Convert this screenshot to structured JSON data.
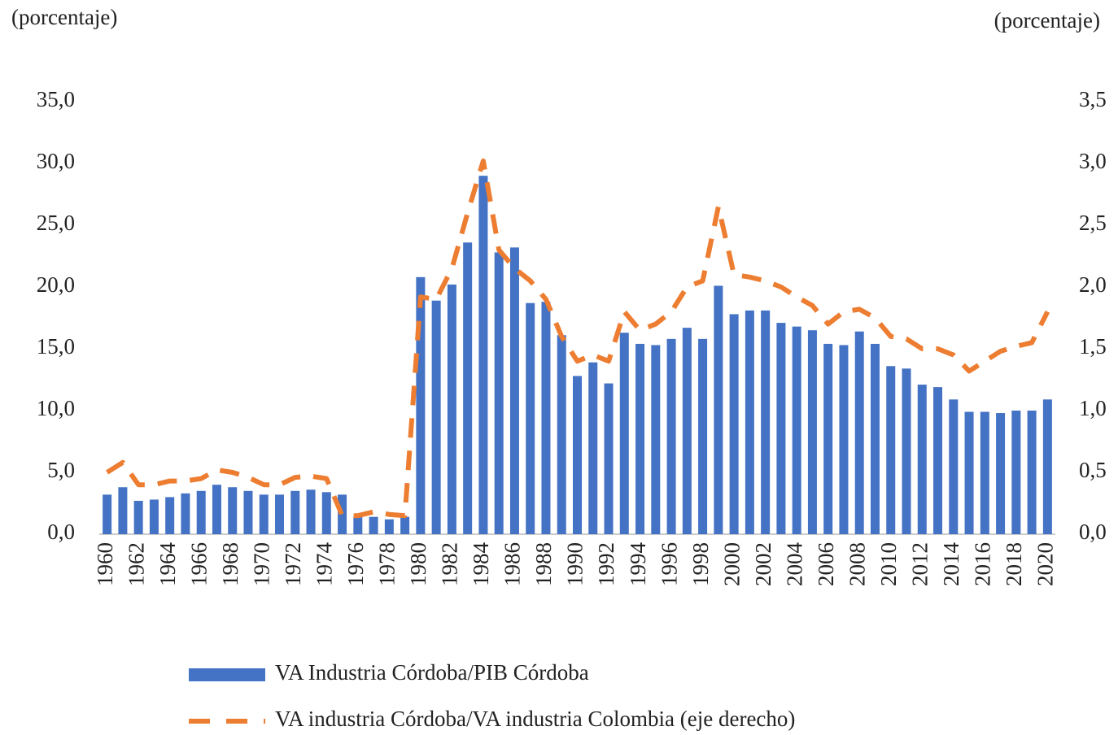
{
  "chart_data": {
    "type": "bar_line",
    "y_label": "(porcentaje)",
    "y2_label": "(porcentaje)",
    "categories": [
      "1960",
      null,
      "1962",
      null,
      "1964",
      null,
      "1966",
      null,
      "1968",
      null,
      "1970",
      null,
      "1972",
      null,
      "1974",
      null,
      "1976",
      null,
      "1978",
      null,
      "1980",
      null,
      "1982",
      null,
      "1984",
      null,
      "1986",
      null,
      "1988",
      null,
      "1990",
      null,
      "1992",
      null,
      "1994",
      null,
      "1996",
      null,
      "1998",
      null,
      "2000",
      null,
      "2002",
      null,
      "2004",
      null,
      "2006",
      null,
      "2008",
      null,
      "2010",
      null,
      "2012",
      null,
      "2014",
      null,
      "2016",
      null,
      "2018",
      null,
      "2020"
    ],
    "series": [
      {
        "name": "VA Industria Córdoba/PIB Córdoba",
        "type": "bar",
        "color": "#4472c4",
        "values": [
          3.2,
          3.8,
          2.7,
          2.8,
          3.0,
          3.3,
          3.5,
          4.0,
          3.8,
          3.5,
          3.2,
          3.2,
          3.5,
          3.6,
          3.4,
          3.2,
          1.4,
          1.4,
          1.2,
          1.4,
          20.8,
          18.9,
          20.2,
          23.6,
          29.0,
          22.8,
          23.2,
          18.7,
          18.8,
          16.1,
          12.8,
          13.9,
          12.2,
          16.3,
          15.4,
          15.3,
          15.8,
          16.7,
          15.8,
          20.1,
          17.8,
          18.1,
          18.1,
          17.1,
          16.8,
          16.5,
          15.4,
          15.3,
          16.4,
          15.4,
          13.6,
          13.4,
          12.1,
          11.9,
          10.9,
          9.9,
          9.9,
          9.8,
          10.0,
          10.0,
          10.9
        ]
      },
      {
        "name": "VA industria Córdoba/VA industria Colombia (eje derecho)",
        "type": "line",
        "axis": "y2",
        "color": "#ed7d31",
        "dashed": true,
        "values": [
          0.5,
          0.58,
          0.4,
          0.4,
          0.43,
          0.43,
          0.45,
          0.52,
          0.5,
          0.46,
          0.4,
          0.4,
          0.46,
          0.47,
          0.45,
          0.15,
          0.15,
          0.18,
          0.16,
          0.15,
          1.92,
          1.9,
          2.15,
          2.6,
          3.02,
          2.3,
          2.15,
          2.05,
          1.9,
          1.6,
          1.4,
          1.45,
          1.4,
          1.8,
          1.65,
          1.7,
          1.8,
          2.0,
          2.05,
          2.65,
          2.1,
          2.08,
          2.05,
          2.0,
          1.92,
          1.85,
          1.7,
          1.8,
          1.82,
          1.75,
          1.6,
          1.58,
          1.5,
          1.5,
          1.45,
          1.32,
          1.4,
          1.48,
          1.52,
          1.55,
          1.8
        ]
      }
    ],
    "ylim": [
      0,
      35
    ],
    "yticks": [
      {
        "value": 0,
        "label": "0,0"
      },
      {
        "value": 5,
        "label": "5,0"
      },
      {
        "value": 10,
        "label": "10,0"
      },
      {
        "value": 15,
        "label": "15,0"
      },
      {
        "value": 20,
        "label": "20,0"
      },
      {
        "value": 25,
        "label": "25,0"
      },
      {
        "value": 30,
        "label": "30,0"
      },
      {
        "value": 35,
        "label": "35,0"
      }
    ],
    "y2lim": [
      0,
      3.5
    ],
    "y2ticks": [
      {
        "value": 0,
        "label": "0,0"
      },
      {
        "value": 0.5,
        "label": "0,5"
      },
      {
        "value": 1,
        "label": "1,0"
      },
      {
        "value": 1.5,
        "label": "1,5"
      },
      {
        "value": 2,
        "label": "2,0"
      },
      {
        "value": 2.5,
        "label": "2,5"
      },
      {
        "value": 3,
        "label": "3,0"
      },
      {
        "value": 3.5,
        "label": "3,5"
      }
    ],
    "grid": false,
    "legend": "bottom"
  }
}
